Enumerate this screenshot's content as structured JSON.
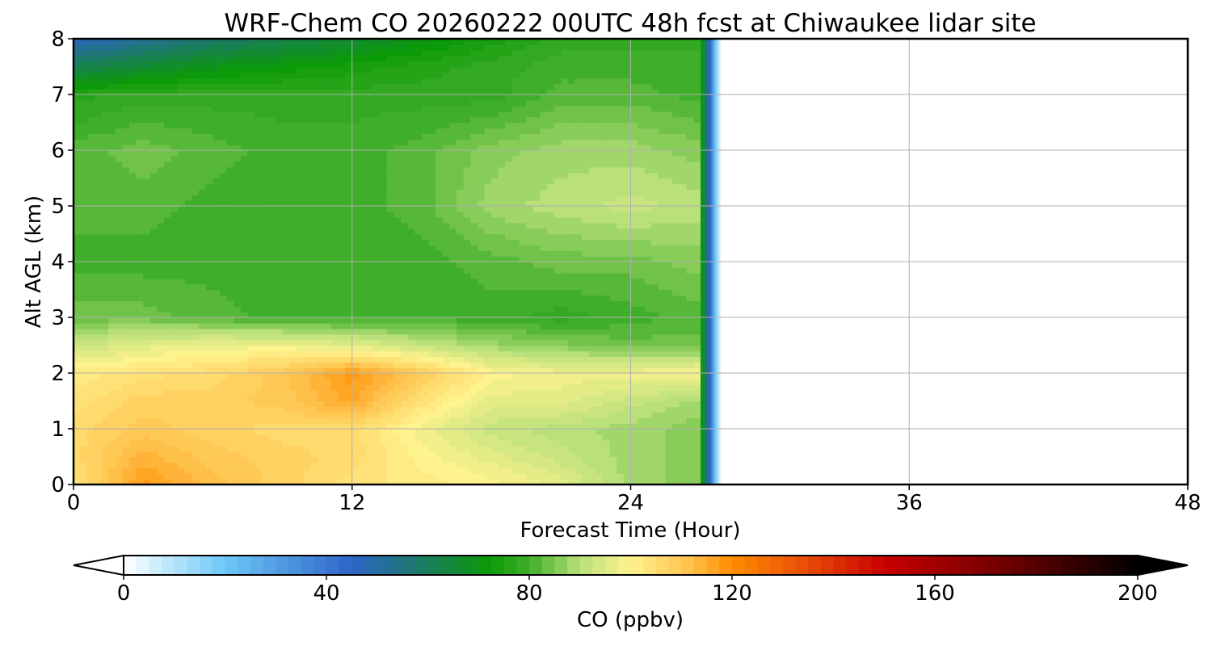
{
  "chart_data": {
    "type": "heatmap",
    "title": "WRF-Chem CO  20260222 00UTC 48h fcst at Chiwaukee lidar site",
    "xlabel": "Forecast Time (Hour)",
    "ylabel": "Alt AGL (km)",
    "xlim": [
      0,
      48
    ],
    "ylim": [
      0,
      8
    ],
    "xticks": [
      "0",
      "12",
      "24",
      "36",
      "48"
    ],
    "yticks": [
      "0",
      "1",
      "2",
      "3",
      "4",
      "5",
      "6",
      "7",
      "8"
    ],
    "grid": true,
    "data_extent_hours": [
      0,
      27
    ],
    "x": [
      0,
      3,
      6,
      9,
      12,
      15,
      18,
      21,
      24,
      27
    ],
    "y": [
      0,
      0.5,
      1,
      1.5,
      2,
      2.5,
      3,
      4,
      5,
      6,
      7,
      7.5,
      8
    ],
    "z": [
      [
        104,
        118,
        112,
        108,
        104,
        102,
        100,
        96,
        88,
        86
      ],
      [
        106,
        114,
        110,
        108,
        106,
        100,
        96,
        92,
        88,
        86
      ],
      [
        106,
        110,
        108,
        106,
        106,
        98,
        92,
        90,
        88,
        86
      ],
      [
        104,
        108,
        108,
        110,
        116,
        104,
        96,
        96,
        92,
        88
      ],
      [
        102,
        104,
        106,
        110,
        118,
        110,
        100,
        98,
        98,
        100
      ],
      [
        92,
        96,
        98,
        98,
        96,
        92,
        88,
        86,
        84,
        84
      ],
      [
        84,
        84,
        82,
        80,
        80,
        80,
        80,
        78,
        80,
        82
      ],
      [
        80,
        80,
        80,
        80,
        80,
        80,
        82,
        84,
        84,
        86
      ],
      [
        82,
        82,
        80,
        80,
        80,
        82,
        88,
        90,
        92,
        90
      ],
      [
        82,
        84,
        82,
        80,
        80,
        82,
        86,
        88,
        88,
        86
      ],
      [
        76,
        78,
        78,
        78,
        78,
        78,
        78,
        82,
        82,
        80
      ],
      [
        62,
        66,
        70,
        72,
        74,
        76,
        78,
        80,
        80,
        80
      ],
      [
        46,
        52,
        58,
        62,
        66,
        70,
        74,
        78,
        78,
        78
      ]
    ],
    "colorbar": {
      "label": "CO  (ppbv)",
      "ticks": [
        "0",
        "40",
        "80",
        "120",
        "160",
        "200"
      ],
      "range": [
        0,
        200
      ],
      "extend": "both",
      "placement": "bottom",
      "stops": [
        {
          "v": 0,
          "c": "#ffffff"
        },
        {
          "v": 20,
          "c": "#6cc7f7"
        },
        {
          "v": 45,
          "c": "#2e64c8"
        },
        {
          "v": 60,
          "c": "#1a7d5c"
        },
        {
          "v": 72,
          "c": "#0b9a08"
        },
        {
          "v": 80,
          "c": "#3fae28"
        },
        {
          "v": 90,
          "c": "#b9e07a"
        },
        {
          "v": 100,
          "c": "#fff38e"
        },
        {
          "v": 112,
          "c": "#ffc04a"
        },
        {
          "v": 120,
          "c": "#ff8c00"
        },
        {
          "v": 135,
          "c": "#e84a08"
        },
        {
          "v": 150,
          "c": "#c80000"
        },
        {
          "v": 175,
          "c": "#6a0000"
        },
        {
          "v": 200,
          "c": "#000000"
        }
      ]
    }
  }
}
